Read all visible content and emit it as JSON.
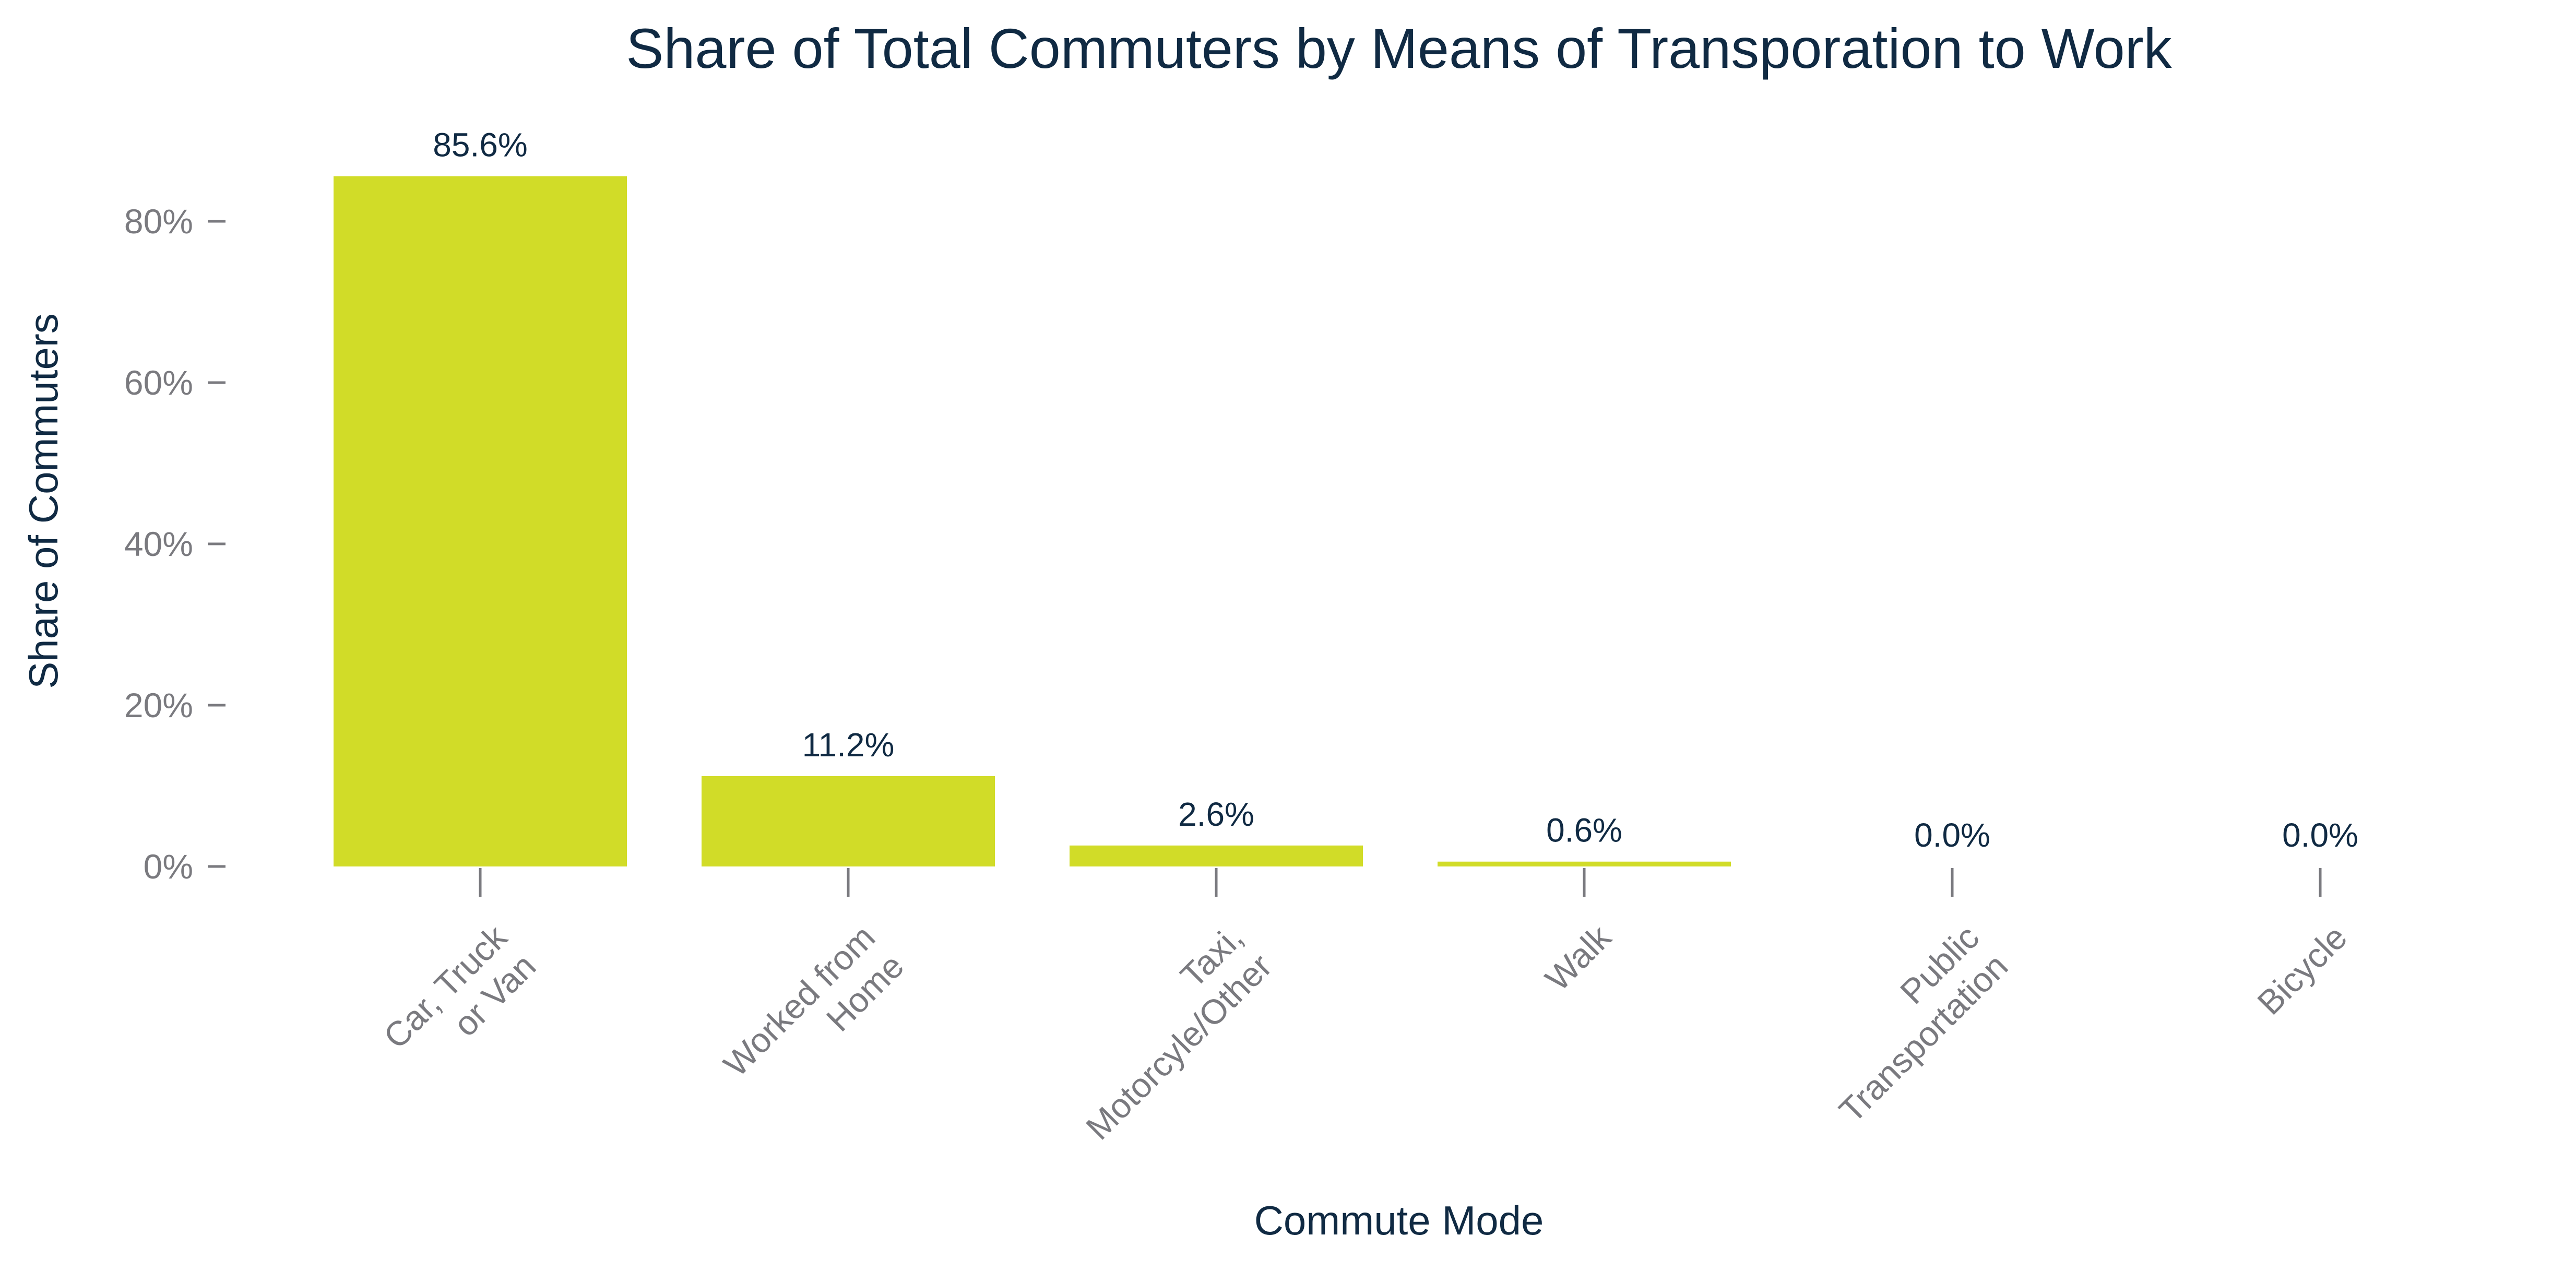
{
  "chart_data": {
    "type": "bar",
    "title": "Share of Total Commuters by Means of Transporation to Work",
    "xlabel": "Commute Mode",
    "ylabel": "Share of Commuters",
    "categories": [
      [
        "Car, Truck",
        "or Van"
      ],
      [
        "Worked from",
        "Home"
      ],
      [
        "Taxi,",
        "Motorcyle/Other"
      ],
      [
        "Walk"
      ],
      [
        "Public",
        "Transportation"
      ],
      [
        "Bicycle"
      ]
    ],
    "values": [
      85.6,
      11.2,
      2.6,
      0.6,
      0.0,
      0.0
    ],
    "data_labels": [
      "85.6%",
      "11.2%",
      "2.6%",
      "0.6%",
      "0.0%",
      "0.0%"
    ],
    "yticks": [
      0,
      20,
      40,
      60,
      80
    ],
    "ytick_labels": [
      "0%",
      "20%",
      "40%",
      "60%",
      "80%"
    ],
    "ylim": [
      0,
      90
    ],
    "grid": false,
    "bar_color": "#d1dc28"
  }
}
